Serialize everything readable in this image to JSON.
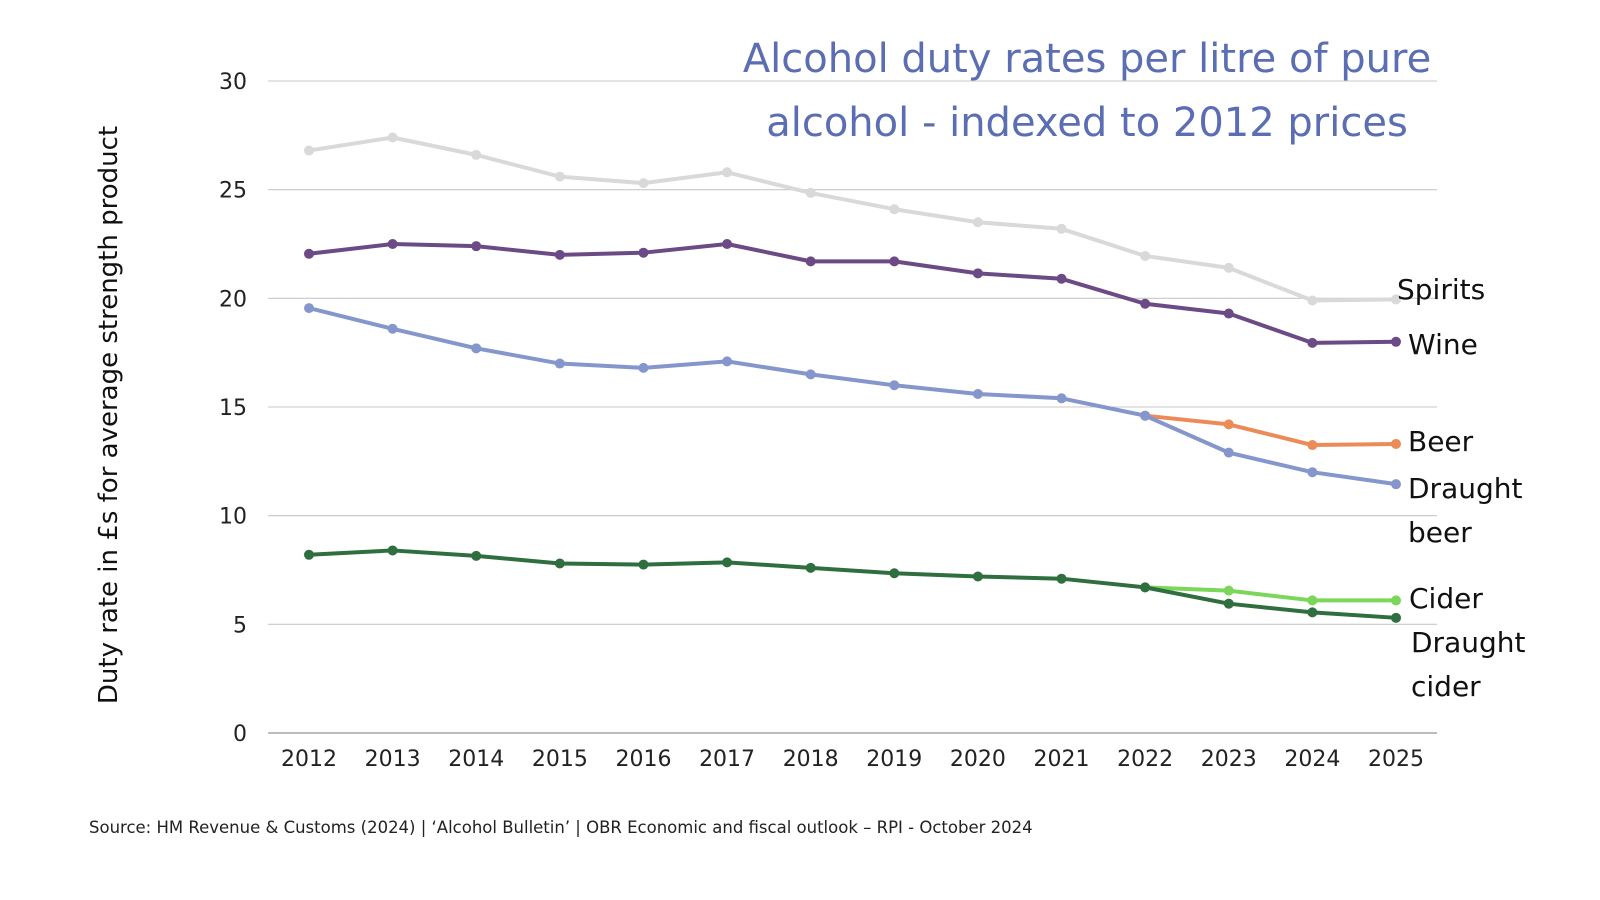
{
  "chart_data": {
    "type": "line",
    "title": [
      "Alcohol duty rates per litre of pure",
      "alcohol - indexed to 2012 prices"
    ],
    "xlabel": "",
    "ylabel": "Duty rate in £s for average strength product",
    "ylim": [
      0,
      30
    ],
    "yticks": [
      0,
      5,
      10,
      15,
      20,
      25,
      30
    ],
    "grid": true,
    "legend": "inline-right",
    "categories": [
      "2012",
      "2013",
      "2014",
      "2015",
      "2016",
      "2017",
      "2018",
      "2019",
      "2020",
      "2021",
      "2022",
      "2023",
      "2024",
      "2025"
    ],
    "series": [
      {
        "name": "Spirits",
        "label_lines": [
          "Spirits"
        ],
        "color": "#d9d9d9",
        "values": [
          26.8,
          27.4,
          26.6,
          25.6,
          25.3,
          25.8,
          24.85,
          24.1,
          23.5,
          23.2,
          21.95,
          21.4,
          19.9,
          19.95
        ]
      },
      {
        "name": "Wine",
        "label_lines": [
          "Wine"
        ],
        "color": "#6b4a86",
        "values": [
          22.05,
          22.5,
          22.4,
          22.0,
          22.1,
          22.5,
          21.7,
          21.7,
          21.15,
          20.9,
          19.75,
          19.3,
          17.95,
          18.0
        ]
      },
      {
        "name": "Beer",
        "label_lines": [
          "Beer"
        ],
        "color": "#ec8b57",
        "values": [
          null,
          null,
          null,
          null,
          null,
          null,
          null,
          null,
          null,
          null,
          14.6,
          14.2,
          13.25,
          13.3
        ]
      },
      {
        "name": "Draught beer",
        "label_lines": [
          "Draught",
          "beer"
        ],
        "color": "#8596cc",
        "values": [
          19.55,
          18.6,
          17.7,
          17.0,
          16.8,
          17.1,
          16.5,
          16.0,
          15.6,
          15.4,
          14.6,
          12.9,
          12.0,
          11.45
        ]
      },
      {
        "name": "Cider",
        "label_lines": [
          "Cider"
        ],
        "color": "#7bd65a",
        "values": [
          null,
          null,
          null,
          null,
          null,
          null,
          null,
          null,
          null,
          null,
          6.7,
          6.55,
          6.1,
          6.1
        ]
      },
      {
        "name": "Draught cider",
        "label_lines": [
          "Draught",
          "cider"
        ],
        "color": "#2f6e3e",
        "values": [
          8.2,
          8.4,
          8.15,
          7.8,
          7.75,
          7.85,
          7.6,
          7.35,
          7.2,
          7.1,
          6.7,
          5.95,
          5.55,
          5.3
        ]
      }
    ]
  },
  "source": "Source: HM Revenue & Customs (2024) | ‘Alcohol Bulletin’ | OBR Economic and fiscal outlook – RPI - October 2024"
}
